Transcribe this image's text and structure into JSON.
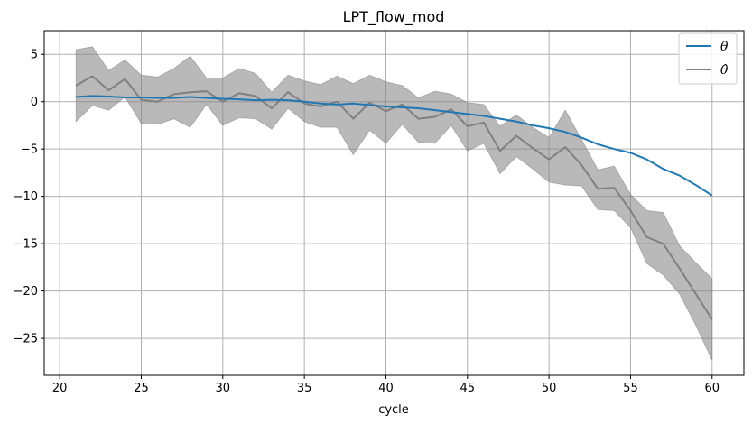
{
  "chart_data": {
    "type": "line",
    "title": "LPT_flow_mod",
    "xlabel": "cycle",
    "ylabel": "",
    "xlim": [
      19.05,
      61.95
    ],
    "ylim": [
      -28.9,
      7.5
    ],
    "xticks": [
      20,
      25,
      30,
      35,
      40,
      45,
      50,
      55,
      60
    ],
    "yticks": [
      5,
      0,
      -5,
      -10,
      -15,
      -20,
      -25
    ],
    "grid": true,
    "legend_position": "top-right",
    "x": [
      21,
      22,
      23,
      24,
      25,
      26,
      27,
      28,
      29,
      30,
      31,
      32,
      33,
      34,
      35,
      36,
      37,
      38,
      39,
      40,
      41,
      42,
      43,
      44,
      45,
      46,
      47,
      48,
      49,
      50,
      51,
      52,
      53,
      54,
      55,
      56,
      57,
      58,
      59,
      60
    ],
    "series": [
      {
        "name": "θ",
        "color": "#1f77b4",
        "values": [
          0.5,
          0.6,
          0.55,
          0.45,
          0.45,
          0.4,
          0.4,
          0.5,
          0.4,
          0.3,
          0.25,
          0.15,
          0.2,
          0.15,
          0.0,
          -0.2,
          -0.3,
          -0.2,
          -0.35,
          -0.5,
          -0.6,
          -0.7,
          -0.9,
          -1.1,
          -1.3,
          -1.5,
          -1.8,
          -2.1,
          -2.5,
          -2.8,
          -3.2,
          -3.8,
          -4.5,
          -5.0,
          -5.4,
          -6.1,
          -7.1,
          -7.8,
          -8.8,
          -9.9
        ]
      },
      {
        "name": "θ̂",
        "color": "#808080",
        "values": [
          1.7,
          2.7,
          1.2,
          2.4,
          0.2,
          0.0,
          0.8,
          1.0,
          1.1,
          0.0,
          0.9,
          0.6,
          -0.7,
          1.0,
          -0.2,
          -0.5,
          0.0,
          -1.8,
          -0.1,
          -1.0,
          -0.3,
          -1.8,
          -1.6,
          -0.8,
          -2.6,
          -2.2,
          -5.2,
          -3.6,
          -4.9,
          -6.1,
          -4.8,
          -6.7,
          -9.2,
          -9.1,
          -11.5,
          -14.3,
          -15.0,
          -17.6,
          -20.3,
          -23.0
        ],
        "band_upper": [
          5.5,
          5.8,
          3.3,
          4.4,
          2.8,
          2.6,
          3.5,
          4.8,
          2.5,
          2.5,
          3.5,
          3.0,
          1.0,
          2.8,
          2.2,
          1.8,
          2.7,
          1.9,
          2.8,
          2.1,
          1.7,
          0.4,
          1.1,
          0.8,
          -0.1,
          -0.3,
          -2.6,
          -1.4,
          -2.7,
          -3.8,
          -0.9,
          -4.0,
          -7.2,
          -6.8,
          -9.8,
          -11.5,
          -11.7,
          -15.2,
          -17.0,
          -18.7
        ],
        "band_lower": [
          -2.1,
          -0.4,
          -0.9,
          0.5,
          -2.3,
          -2.4,
          -1.8,
          -2.7,
          -0.3,
          -2.5,
          -1.7,
          -1.8,
          -2.9,
          -0.7,
          -2.1,
          -2.7,
          -2.7,
          -5.6,
          -3.0,
          -4.4,
          -2.4,
          -4.3,
          -4.4,
          -2.5,
          -5.2,
          -4.4,
          -7.6,
          -5.8,
          -7.1,
          -8.5,
          -8.8,
          -8.9,
          -11.4,
          -11.5,
          -13.3,
          -17.1,
          -18.3,
          -20.3,
          -23.6,
          -27.3
        ]
      }
    ]
  }
}
